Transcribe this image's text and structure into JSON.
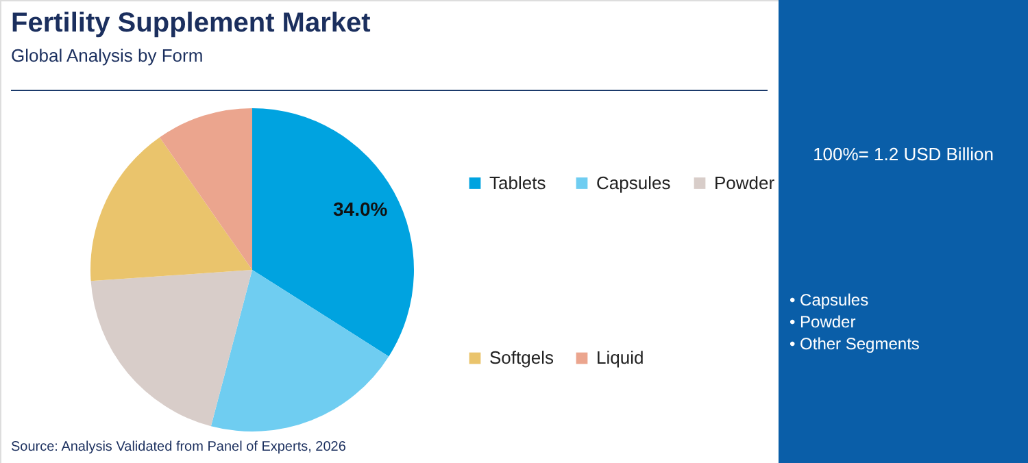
{
  "chart_data": {
    "type": "pie",
    "title": "Fertility Supplement Market",
    "subtitle": "Global Analysis by Form",
    "categories": [
      "Tablets",
      "Capsules",
      "Powder",
      "Softgels",
      "Liquid"
    ],
    "values": [
      34.0,
      20.1,
      19.8,
      16.4,
      9.7
    ],
    "colors": [
      "#00a3e0",
      "#6fcdf1",
      "#d8cdc9",
      "#eac46c",
      "#eba58e"
    ],
    "value_labels": [
      "34.0%",
      null,
      null,
      null,
      null
    ],
    "legend": "right",
    "annotations": [
      "100%= 1.2 USD Billion",
      "• Capsules",
      "• Powder",
      "• Other Segments",
      "Source: Analysis Validated from Panel of Experts, 2026"
    ]
  }
}
